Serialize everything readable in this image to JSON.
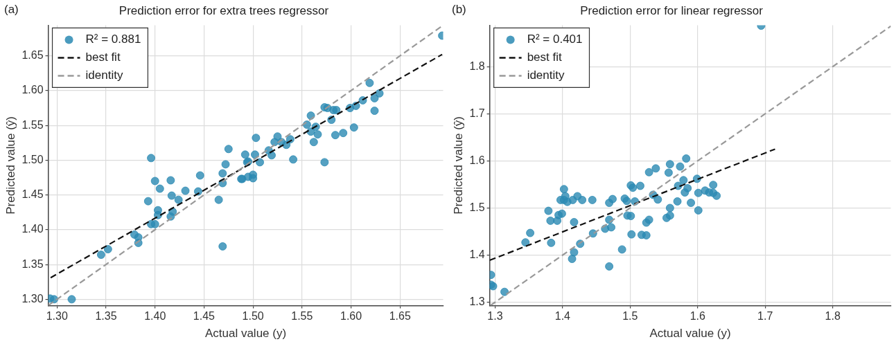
{
  "chart_data": [
    {
      "type": "scatter",
      "title": "Prediction error for extra trees regressor",
      "xlabel": "Actual value (y)",
      "ylabel": "Predicted value (ŷ)",
      "annotations": [
        "(a)"
      ],
      "xlim": [
        1.291,
        1.694
      ],
      "ylim": [
        1.291,
        1.694
      ],
      "xticks": [
        {
          "value": 1.3,
          "label": "1.30"
        },
        1.35,
        {
          "value": 1.4,
          "label": "1.40"
        },
        1.45,
        {
          "value": 1.5,
          "label": "1.50"
        },
        1.55,
        {
          "value": 1.6,
          "label": "1.60"
        },
        1.65
      ],
      "yticks": [
        {
          "value": 1.3,
          "label": "1.30"
        },
        1.35,
        {
          "value": 1.4,
          "label": "1.40"
        },
        1.45,
        {
          "value": 1.5,
          "label": "1.50"
        },
        1.55,
        {
          "value": 1.6,
          "label": "1.60"
        },
        1.65
      ],
      "grid": true,
      "legend": "top left",
      "series": [
        {
          "name": "R² = 0.881",
          "marker": "circle",
          "color": "#2a8ab3",
          "x": [
            1.293,
            1.297,
            1.315,
            1.345,
            1.352,
            1.379,
            1.383,
            1.383,
            1.393,
            1.396,
            1.4,
            1.396,
            1.4,
            1.403,
            1.403,
            1.405,
            1.416,
            1.417,
            1.416,
            1.418,
            1.424,
            1.431,
            1.444,
            1.446,
            1.465,
            1.469,
            1.469,
            1.469,
            1.472,
            1.475,
            1.489,
            1.492,
            1.494,
            1.488,
            1.495,
            1.5,
            1.5,
            1.495,
            1.502,
            1.507,
            1.503,
            1.516,
            1.519,
            1.522,
            1.525,
            1.529,
            1.534,
            1.538,
            1.541,
            1.555,
            1.559,
            1.559,
            1.562,
            1.564,
            1.566,
            1.573,
            1.573,
            1.576,
            1.58,
            1.582,
            1.585,
            1.584,
            1.592,
            1.599,
            1.603,
            1.605,
            1.612,
            1.619,
            1.624,
            1.629,
            1.624,
            1.693
          ],
          "values": [
            1.301,
            1.3,
            1.3,
            1.364,
            1.372,
            1.393,
            1.389,
            1.381,
            1.441,
            1.503,
            1.47,
            1.408,
            1.408,
            1.428,
            1.421,
            1.459,
            1.471,
            1.449,
            1.419,
            1.426,
            1.443,
            1.456,
            1.455,
            1.478,
            1.443,
            1.376,
            1.467,
            1.481,
            1.494,
            1.516,
            1.473,
            1.508,
            1.497,
            1.473,
            1.476,
            1.479,
            1.474,
            1.498,
            1.508,
            1.497,
            1.532,
            1.514,
            1.507,
            1.526,
            1.534,
            1.526,
            1.522,
            1.53,
            1.501,
            1.551,
            1.564,
            1.541,
            1.526,
            1.548,
            1.537,
            1.497,
            1.576,
            1.575,
            1.558,
            1.572,
            1.572,
            1.536,
            1.539,
            1.575,
            1.547,
            1.578,
            1.586,
            1.611,
            1.589,
            1.596,
            1.571,
            1.679
          ]
        },
        {
          "name": "best fit",
          "type": "line",
          "color": "#111111",
          "line_style": "dashed",
          "x": [
            1.2935,
            1.693
          ],
          "values": [
            1.331,
            1.652
          ]
        },
        {
          "name": "identity",
          "type": "line",
          "color": "#999999",
          "line_style": "dashed",
          "x": [
            1.291,
            1.694
          ],
          "values": [
            1.291,
            1.694
          ]
        }
      ]
    },
    {
      "type": "scatter",
      "title": "Prediction error for linear regressor",
      "xlabel": "Actual value (y)",
      "ylabel": "Predicted value (ŷ)",
      "annotations": [
        "(b)"
      ],
      "xlim": [
        1.292,
        1.886
      ],
      "ylim": [
        1.293,
        1.888
      ],
      "xticks": [
        1.3,
        1.4,
        1.5,
        1.6,
        1.7,
        1.8
      ],
      "yticks": [
        1.3,
        1.4,
        1.5,
        1.6,
        1.7,
        1.8
      ],
      "grid": true,
      "legend": "top left",
      "series": [
        {
          "name": "R² = 0.401",
          "marker": "circle",
          "color": "#2a8ab3",
          "x": [
            1.294,
            1.294,
            1.297,
            1.314,
            1.345,
            1.352,
            1.379,
            1.382,
            1.383,
            1.392,
            1.394,
            1.399,
            1.402,
            1.397,
            1.402,
            1.404,
            1.407,
            1.415,
            1.414,
            1.417,
            1.417,
            1.422,
            1.426,
            1.429,
            1.444,
            1.445,
            1.463,
            1.469,
            1.469,
            1.469,
            1.472,
            1.474,
            1.488,
            1.492,
            1.495,
            1.496,
            1.501,
            1.501,
            1.504,
            1.502,
            1.507,
            1.515,
            1.517,
            1.524,
            1.524,
            1.528,
            1.528,
            1.538,
            1.541,
            1.534,
            1.557,
            1.559,
            1.554,
            1.559,
            1.559,
            1.574,
            1.583,
            1.579,
            1.571,
            1.585,
            1.581,
            1.57,
            1.59,
            1.599,
            1.601,
            1.601,
            1.611,
            1.617,
            1.623,
            1.623,
            1.628,
            1.694
          ],
          "values": [
            1.358,
            1.337,
            1.334,
            1.322,
            1.427,
            1.447,
            1.494,
            1.473,
            1.426,
            1.473,
            1.485,
            1.488,
            1.54,
            1.517,
            1.517,
            1.525,
            1.513,
            1.517,
            1.392,
            1.406,
            1.47,
            1.525,
            1.424,
            1.517,
            1.517,
            1.446,
            1.456,
            1.511,
            1.376,
            1.475,
            1.459,
            1.519,
            1.412,
            1.52,
            1.515,
            1.484,
            1.548,
            1.483,
            1.543,
            1.444,
            1.514,
            1.547,
            1.443,
            1.442,
            1.469,
            1.475,
            1.576,
            1.584,
            1.518,
            1.528,
            1.575,
            1.593,
            1.479,
            1.5,
            1.484,
            1.588,
            1.605,
            1.559,
            1.547,
            1.542,
            1.533,
            1.514,
            1.511,
            1.562,
            1.532,
            1.495,
            1.537,
            1.533,
            1.549,
            1.532,
            1.526,
            1.887
          ]
        },
        {
          "name": "best fit",
          "type": "line",
          "color": "#111111",
          "line_style": "dashed",
          "x": [
            1.292,
            1.7146
          ],
          "values": [
            1.389,
            1.625
          ]
        },
        {
          "name": "identity",
          "type": "line",
          "color": "#999999",
          "line_style": "dashed",
          "x": [
            1.293,
            1.886
          ],
          "values": [
            1.293,
            1.886
          ]
        }
      ]
    }
  ]
}
